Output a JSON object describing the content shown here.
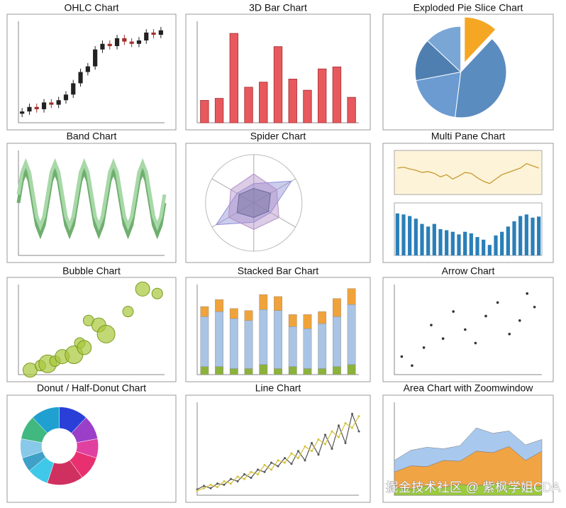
{
  "chart_data": [
    {
      "type": "ohlc",
      "title": "OHLC Chart",
      "ylim": [
        10,
        100
      ],
      "up_color": "#222222",
      "down_color": "#a0302a",
      "open": [
        18,
        20,
        24,
        22,
        28,
        26,
        30,
        35,
        45,
        55,
        60,
        75,
        80,
        78,
        85,
        82,
        80,
        83,
        90,
        88
      ],
      "high": [
        23,
        27,
        27,
        31,
        31,
        33,
        38,
        48,
        58,
        63,
        78,
        83,
        83,
        88,
        88,
        85,
        86,
        93,
        93,
        95
      ],
      "low": [
        15,
        17,
        19,
        19,
        23,
        23,
        27,
        32,
        42,
        52,
        57,
        72,
        75,
        75,
        79,
        77,
        77,
        80,
        85,
        85
      ],
      "close": [
        20,
        24,
        22,
        28,
        26,
        30,
        35,
        45,
        55,
        60,
        75,
        80,
        78,
        85,
        82,
        80,
        83,
        90,
        88,
        92
      ]
    },
    {
      "type": "bar",
      "title": "3D Bar Chart",
      "ylim": [
        0,
        100
      ],
      "color": "#e8595e",
      "values": [
        22,
        24,
        88,
        35,
        40,
        75,
        43,
        32,
        53,
        55,
        25
      ]
    },
    {
      "type": "pie",
      "title": "Exploded Pie Slice Chart",
      "explode": 0,
      "values": [
        12,
        40,
        20,
        15,
        13
      ],
      "colors": [
        "#f5a623",
        "#5b8cc0",
        "#6b9bd1",
        "#4f7fb0",
        "#7aa6d6"
      ]
    },
    {
      "type": "line",
      "title": "Band Chart",
      "xlim": [
        0,
        40
      ],
      "ylim": [
        0,
        100
      ],
      "fill_band": true,
      "x": [
        0,
        1,
        2,
        3,
        4,
        5,
        6,
        7,
        8,
        9,
        10,
        11,
        12,
        13,
        14,
        15,
        16,
        17,
        18,
        19,
        20,
        21,
        22,
        23,
        24,
        25,
        26,
        27,
        28,
        29,
        30,
        31,
        32,
        33,
        34,
        35,
        36,
        37,
        38,
        39,
        40
      ],
      "series": [
        {
          "color": "#6fae6f",
          "values": [
            50,
            71,
            80,
            71,
            50,
            29,
            20,
            29,
            50,
            71,
            80,
            71,
            50,
            29,
            20,
            29,
            50,
            71,
            80,
            71,
            50,
            29,
            20,
            29,
            50,
            71,
            80,
            71,
            50,
            29,
            20,
            29,
            50,
            71,
            80,
            71,
            50,
            29,
            20,
            29,
            50
          ]
        },
        {
          "color": "#a8d8a8",
          "values": [
            58,
            79,
            88,
            79,
            58,
            37,
            28,
            37,
            58,
            79,
            88,
            79,
            58,
            37,
            28,
            37,
            58,
            79,
            88,
            79,
            58,
            37,
            28,
            37,
            58,
            79,
            88,
            79,
            58,
            37,
            28,
            37,
            58,
            79,
            88,
            79,
            58,
            37,
            28,
            37,
            58
          ]
        }
      ]
    },
    {
      "type": "radar",
      "title": "Spider Chart",
      "rlim": [
        0,
        100
      ],
      "series": [
        {
          "color": "#8f8fd6",
          "values": [
            40,
            90,
            40,
            40,
            90,
            40
          ]
        },
        {
          "color": "#b28fc7",
          "values": [
            60,
            55,
            60,
            55,
            60,
            55
          ]
        },
        {
          "color": "#6a6a9a",
          "values": [
            30,
            40,
            35,
            30,
            40,
            35
          ]
        }
      ]
    },
    {
      "type": "combo",
      "title": "Multi Pane Chart",
      "ylim": [
        0,
        100
      ],
      "y2lim": [
        0,
        100
      ],
      "line": {
        "color": "#c89a30",
        "values": [
          60,
          62,
          58,
          55,
          50,
          52,
          48,
          40,
          45,
          35,
          42,
          50,
          48,
          38,
          30,
          25,
          35,
          45,
          50,
          55,
          60,
          70,
          65,
          60
        ]
      },
      "bars": {
        "color": "#2a7fb8",
        "values": [
          80,
          78,
          75,
          70,
          60,
          55,
          60,
          50,
          48,
          45,
          40,
          45,
          42,
          35,
          30,
          20,
          38,
          45,
          55,
          65,
          75,
          78,
          72,
          74
        ]
      }
    },
    {
      "type": "bubble",
      "title": "Bubble Chart",
      "xlim": [
        0,
        100
      ],
      "ylim": [
        0,
        100
      ],
      "color": "#a8c83a",
      "x": [
        8,
        15,
        20,
        25,
        30,
        38,
        42,
        45,
        48,
        55,
        60,
        75,
        85,
        95
      ],
      "y": [
        5,
        10,
        12,
        15,
        20,
        22,
        35,
        30,
        60,
        55,
        45,
        70,
        95,
        90
      ],
      "size": [
        4,
        3,
        5,
        3,
        4,
        5,
        3,
        4,
        3,
        4,
        5,
        3,
        4,
        3
      ]
    },
    {
      "type": "stacked_bar",
      "title": "Stacked Bar Chart",
      "ylim": [
        0,
        90
      ],
      "series": [
        {
          "color": "#8cb23c",
          "values": [
            8,
            8,
            6,
            6,
            10,
            6,
            8,
            6,
            6,
            8,
            10
          ]
        },
        {
          "color": "#a9c4e4",
          "values": [
            50,
            55,
            50,
            48,
            55,
            58,
            40,
            40,
            45,
            50,
            60
          ]
        },
        {
          "color": "#f0a33a",
          "values": [
            10,
            12,
            10,
            10,
            15,
            14,
            12,
            14,
            12,
            18,
            16
          ]
        }
      ]
    },
    {
      "type": "scatter",
      "title": "Arrow Chart",
      "xlim": [
        0,
        100
      ],
      "ylim": [
        0,
        100
      ],
      "color": "#333333",
      "x": [
        5,
        12,
        20,
        25,
        33,
        40,
        48,
        55,
        62,
        70,
        78,
        85,
        90,
        95
      ],
      "y": [
        20,
        10,
        30,
        55,
        40,
        70,
        50,
        35,
        65,
        80,
        45,
        60,
        90,
        75
      ]
    },
    {
      "type": "donut",
      "title": "Donut / Half-Donut Chart",
      "values": [
        12,
        10,
        8,
        10,
        15,
        9,
        6,
        8,
        10,
        12
      ],
      "colors": [
        "#2a3fd8",
        "#9b3fc8",
        "#e040a0",
        "#e83070",
        "#d03060",
        "#40c8e8",
        "#3fa0c8",
        "#88c8e8",
        "#40b880",
        "#20a0d0"
      ]
    },
    {
      "type": "line",
      "title": "Line Chart",
      "xlim": [
        0,
        24
      ],
      "ylim": [
        0,
        80
      ],
      "fill_band": false,
      "x": [
        0,
        1,
        2,
        3,
        4,
        5,
        6,
        7,
        8,
        9,
        10,
        11,
        12,
        13,
        14,
        15,
        16,
        17,
        18,
        19,
        20,
        21,
        22,
        23,
        24
      ],
      "series": [
        {
          "color": "#555555",
          "values": [
            5,
            8,
            6,
            10,
            9,
            14,
            12,
            18,
            15,
            22,
            20,
            28,
            25,
            32,
            27,
            38,
            30,
            45,
            35,
            52,
            40,
            60,
            45,
            70,
            55
          ]
        },
        {
          "color": "#d4c23a",
          "values": [
            4,
            6,
            9,
            7,
            12,
            10,
            16,
            14,
            20,
            18,
            26,
            22,
            30,
            28,
            36,
            32,
            42,
            38,
            48,
            44,
            55,
            50,
            62,
            58,
            68
          ]
        }
      ]
    },
    {
      "type": "area",
      "title": "Area Chart with Zoomwindow",
      "ylim": [
        0,
        120
      ],
      "series": [
        {
          "color": "#9ccc3c",
          "values": [
            10,
            8,
            12,
            10,
            14,
            12,
            15,
            13,
            10,
            12
          ]
        },
        {
          "color": "#f0a444",
          "values": [
            20,
            30,
            25,
            35,
            30,
            45,
            40,
            50,
            35,
            45
          ]
        },
        {
          "color": "#a9c8ee",
          "values": [
            15,
            20,
            25,
            15,
            20,
            30,
            25,
            20,
            20,
            15
          ]
        }
      ]
    }
  ],
  "watermark": "掘金技术社区 @ 紫枫学姐CDA"
}
